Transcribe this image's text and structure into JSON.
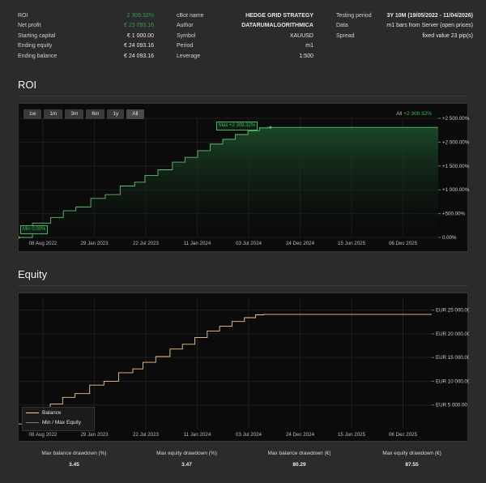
{
  "stats": {
    "col1": [
      {
        "label": "ROI",
        "value": "2 309.32%",
        "color": "green"
      },
      {
        "label": "Net profit",
        "value": "€ 23 093.16",
        "color": "green"
      },
      {
        "label": "Starting capital",
        "value": "€ 1 000.00"
      },
      {
        "label": "Ending equity",
        "value": "€ 24 093.16"
      },
      {
        "label": "Ending balance",
        "value": "€ 24 093.16"
      }
    ],
    "col2": [
      {
        "label": "cBot name",
        "value": "HEDGE GRID STRATEGY"
      },
      {
        "label": "Author",
        "value": "DATARUMALGORITHMICA"
      },
      {
        "label": "Symbol",
        "value": "XAUUSD"
      },
      {
        "label": "Period",
        "value": "m1"
      },
      {
        "label": "Leverage",
        "value": "1:500"
      }
    ],
    "col3": [
      {
        "label": "Testing period",
        "value": "3Y 10M (19/05/2022 - 11/04/2026)"
      },
      {
        "label": "Data",
        "value": "m1 bars from Server (open prices)"
      },
      {
        "label": "Spread",
        "value": "fixed value 23 pip(s)"
      }
    ]
  },
  "roi": {
    "title": "ROI",
    "range_buttons": [
      "1w",
      "1m",
      "3m",
      "6m",
      "1y",
      "All"
    ],
    "all_prefix": "All",
    "all_value": "+2 309.32%",
    "max_tag": "Max +2 309.32%",
    "min_tag": "Min 0.00%",
    "y_ticks": [
      "+2 500.00%",
      "+2 000.00%",
      "+1 500.00%",
      "+1 000.00%",
      "+500.00%",
      "0.00%"
    ],
    "x_ticks": [
      "08 Aug 2022",
      "29 Jan 2023",
      "22 Jul 2023",
      "11 Jan 2024",
      "03 Jul 2024",
      "24 Dec 2024",
      "15 Jun 2025",
      "06 Dec 2025"
    ]
  },
  "equity": {
    "title": "Equity",
    "y_ticks": [
      "EUR 25 000.00",
      "EUR 20 000.00",
      "EUR 15 000.00",
      "EUR 10 000.00",
      "EUR 5 000.00"
    ],
    "x_ticks": [
      "08 Aug 2022",
      "29 Jan 2023",
      "22 Jul 2023",
      "11 Jan 2024",
      "03 Jul 2024",
      "24 Dec 2024",
      "15 Jun 2025",
      "06 Dec 2025"
    ],
    "legend": [
      {
        "label": "Balance",
        "color": "#f0c890"
      },
      {
        "label": "Min / Max Equity",
        "color": "#7a7a7a"
      }
    ]
  },
  "chart_data": [
    {
      "type": "area",
      "title": "ROI",
      "x_range": [
        "19/05/2022",
        "11/04/2026"
      ],
      "ylim": [
        0,
        2500
      ],
      "series": [
        {
          "values": [
            [
              0,
              0
            ],
            [
              0.06,
              300
            ],
            [
              0.09,
              420
            ],
            [
              0.12,
              560
            ],
            [
              0.15,
              640
            ],
            [
              0.19,
              820
            ],
            [
              0.22,
              900
            ],
            [
              0.26,
              1080
            ],
            [
              0.29,
              1160
            ],
            [
              0.31,
              1300
            ],
            [
              0.35,
              1420
            ],
            [
              0.38,
              1580
            ],
            [
              0.41,
              1680
            ],
            [
              0.44,
              1820
            ],
            [
              0.47,
              1960
            ],
            [
              0.5,
              2060
            ],
            [
              0.53,
              2160
            ],
            [
              0.56,
              2240
            ],
            [
              0.585,
              2300
            ],
            [
              0.6,
              2309.32
            ],
            [
              0.8,
              2309.32
            ],
            [
              1.0,
              2309.32
            ]
          ]
        }
      ],
      "max": 2309.32,
      "min": 0.0
    },
    {
      "type": "line",
      "title": "Equity",
      "x_range": [
        "19/05/2022",
        "11/04/2026"
      ],
      "ylim": [
        0,
        27500
      ],
      "series": [
        {
          "name": "Balance",
          "values": [
            [
              0,
              1000
            ],
            [
              0.06,
              3900
            ],
            [
              0.09,
              5200
            ],
            [
              0.12,
              6600
            ],
            [
              0.15,
              7400
            ],
            [
              0.19,
              9200
            ],
            [
              0.22,
              10000
            ],
            [
              0.26,
              11800
            ],
            [
              0.29,
              12600
            ],
            [
              0.31,
              14000
            ],
            [
              0.35,
              15200
            ],
            [
              0.38,
              16800
            ],
            [
              0.41,
              17800
            ],
            [
              0.44,
              19200
            ],
            [
              0.47,
              20600
            ],
            [
              0.5,
              21600
            ],
            [
              0.53,
              22600
            ],
            [
              0.56,
              23400
            ],
            [
              0.585,
              24000
            ],
            [
              0.6,
              24093.16
            ],
            [
              1.0,
              24093.16
            ]
          ]
        }
      ]
    }
  ],
  "footer": [
    {
      "label": "Max balance drawdown (%)",
      "value": "3.45"
    },
    {
      "label": "Max equity drawdown (%)",
      "value": "3.47"
    },
    {
      "label": "Max balance drawdown (€)",
      "value": "80.29"
    },
    {
      "label": "Max equity drawdown (€)",
      "value": "87.55"
    }
  ]
}
